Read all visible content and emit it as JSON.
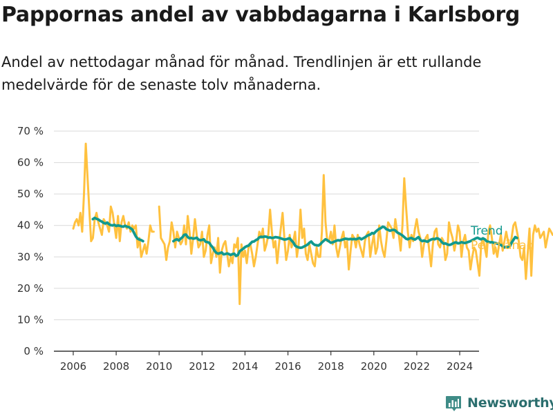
{
  "title": "Pappornas andel av vabbdagarna i Karlsborg",
  "subtitle": "Andel av nettodagar månad för månad. Trendlinjen är ett rullande medelvärde för de senaste tolv månaderna.",
  "brand": {
    "name": "Newsworthy",
    "icon": "newsworthy-logo-icon"
  },
  "colors": {
    "monthly": "#FFC13F",
    "trend": "#11998E",
    "grid": "#d9d9d9",
    "axis": "#333333",
    "text": "#333333"
  },
  "chart_data": {
    "type": "line",
    "x_start": 2006.0,
    "x_step": 0.0833333,
    "xlim": [
      2005.1,
      2024.9
    ],
    "ylim": [
      0,
      70
    ],
    "y_ticks": [
      0,
      10,
      20,
      30,
      40,
      50,
      60,
      70
    ],
    "y_tick_labels": [
      "0 %",
      "10 %",
      "20 %",
      "30 %",
      "40 %",
      "50 %",
      "60 %",
      "70 %"
    ],
    "x_ticks": [
      2006,
      2008,
      2010,
      2012,
      2014,
      2016,
      2018,
      2020,
      2022,
      2024
    ],
    "x_tick_labels": [
      "2006",
      "2008",
      "2010",
      "2012",
      "2014",
      "2016",
      "2018",
      "2020",
      "2022",
      "2024"
    ],
    "grid": true,
    "legend": "right",
    "series": [
      {
        "name": "Per månad",
        "color": "#FFC13F",
        "values": [
          39,
          41,
          42,
          40,
          44,
          38,
          50,
          66,
          55,
          45,
          35,
          36,
          42,
          44,
          41,
          39,
          37,
          42,
          41,
          40,
          38,
          46,
          44,
          40,
          36,
          43,
          35,
          41,
          43,
          40,
          39,
          41,
          38,
          40,
          39,
          40,
          33,
          36,
          30,
          32,
          34,
          31,
          35,
          40,
          38,
          38,
          null,
          null,
          46,
          36,
          35,
          34,
          29,
          33,
          35,
          41,
          38,
          33,
          38,
          36,
          34,
          35,
          40,
          34,
          43,
          38,
          31,
          36,
          42,
          37,
          33,
          34,
          38,
          30,
          32,
          37,
          40,
          28,
          31,
          33,
          30,
          36,
          25,
          32,
          34,
          35,
          31,
          27,
          30,
          28,
          34,
          33,
          36,
          15,
          34,
          30,
          32,
          28,
          33,
          34,
          31,
          27,
          30,
          34,
          38,
          36,
          39,
          32,
          34,
          37,
          45,
          38,
          33,
          35,
          28,
          34,
          39,
          44,
          36,
          29,
          32,
          37,
          33,
          35,
          38,
          30,
          34,
          45,
          36,
          39,
          31,
          29,
          34,
          31,
          28,
          27,
          33,
          30,
          30,
          38,
          56,
          41,
          35,
          35,
          38,
          34,
          40,
          33,
          30,
          33,
          36,
          38,
          33,
          35,
          26,
          32,
          37,
          36,
          33,
          37,
          34,
          32,
          30,
          35,
          37,
          38,
          30,
          34,
          37,
          31,
          33,
          40,
          35,
          32,
          30,
          35,
          41,
          40,
          39,
          36,
          42,
          38,
          37,
          32,
          40,
          55,
          46,
          38,
          33,
          37,
          35,
          39,
          42,
          38,
          36,
          30,
          34,
          36,
          37,
          32,
          27,
          34,
          38,
          39,
          34,
          33,
          36,
          35,
          29,
          31,
          41,
          38,
          36,
          32,
          35,
          40,
          38,
          30,
          35,
          37,
          33,
          32,
          26,
          30,
          33,
          32,
          28,
          24,
          34,
          36,
          33,
          30,
          38,
          40,
          36,
          31,
          33,
          30,
          34,
          37,
          32,
          35,
          38,
          35,
          33,
          36,
          40,
          41,
          38,
          35,
          30,
          29,
          33,
          23,
          31,
          39,
          24,
          37,
          40,
          38,
          39,
          36,
          37,
          38,
          33,
          36,
          39,
          38,
          37
        ],
        "gaps_note": ""
      },
      {
        "name": "Trend",
        "color": "#11998E",
        "values": [
          null,
          null,
          null,
          null,
          null,
          null,
          null,
          null,
          null,
          null,
          null,
          42.0,
          42.4,
          42.1,
          41.9,
          41.5,
          41.2,
          40.8,
          40.6,
          40.9,
          40.4,
          40.1,
          40.0,
          40.2,
          39.8,
          40.0,
          39.9,
          39.7,
          39.6,
          39.9,
          39.6,
          39.5,
          39.1,
          38.7,
          37.6,
          36.5,
          35.8,
          35.5,
          35.3,
          35.0,
          null,
          null,
          null,
          null,
          null,
          null,
          null,
          null,
          null,
          null,
          null,
          null,
          null,
          null,
          null,
          null,
          35.0,
          35.4,
          35.6,
          35.2,
          35.8,
          36.2,
          37.0,
          37.1,
          36.3,
          35.9,
          36.0,
          35.8,
          35.9,
          36.1,
          35.5,
          35.3,
          35.4,
          35.6,
          34.8,
          34.7,
          34.5,
          33.6,
          33.0,
          31.9,
          31.3,
          31.0,
          31.2,
          31.4,
          30.8,
          30.9,
          31.1,
          30.9,
          30.6,
          30.9,
          31.0,
          30.3,
          30.6,
          31.8,
          32.2,
          32.6,
          33.1,
          33.4,
          33.6,
          34.2,
          34.8,
          34.9,
          35.3,
          35.6,
          36.2,
          36.4,
          36.3,
          36.5,
          36.4,
          36.1,
          36.2,
          36.0,
          36.1,
          36.3,
          36.2,
          36.1,
          35.9,
          35.7,
          35.5,
          35.6,
          35.8,
          35.9,
          35.2,
          34.6,
          33.6,
          33.2,
          33.0,
          32.9,
          33.0,
          33.3,
          33.6,
          33.9,
          34.5,
          34.9,
          34.2,
          33.8,
          33.7,
          33.6,
          34.0,
          34.6,
          35.1,
          35.6,
          35.3,
          34.9,
          34.5,
          34.6,
          34.9,
          35.1,
          35.3,
          35.2,
          35.4,
          35.6,
          35.8,
          35.7,
          35.6,
          35.7,
          35.6,
          35.7,
          35.6,
          35.8,
          36.0,
          35.6,
          35.9,
          36.2,
          36.6,
          36.9,
          37.1,
          37.6,
          37.4,
          38.0,
          38.5,
          38.9,
          39.2,
          39.6,
          39.4,
          38.8,
          38.6,
          38.3,
          38.5,
          38.6,
          38.4,
          37.8,
          37.5,
          37.2,
          36.8,
          36.3,
          35.8,
          35.6,
          35.9,
          36.0,
          35.7,
          35.5,
          35.9,
          36.3,
          35.4,
          35.0,
          35.2,
          35.0,
          34.8,
          35.2,
          35.5,
          35.7,
          35.6,
          35.9,
          35.8,
          35.4,
          34.7,
          34.2,
          34.3,
          34.0,
          33.8,
          33.9,
          34.2,
          34.5,
          34.6,
          34.3,
          34.4,
          34.7,
          34.5,
          34.4,
          34.6,
          34.8,
          35.0,
          35.3,
          35.6,
          35.9,
          36.1,
          35.8,
          35.6,
          35.9,
          35.6,
          35.0,
          34.8,
          34.6,
          34.7,
          34.5,
          34.4,
          34.2,
          34.1,
          33.8,
          33.4,
          33.0,
          33.2,
          33.1,
          33.3,
          34.5,
          35.4,
          36.3,
          36.0
        ]
      }
    ]
  }
}
